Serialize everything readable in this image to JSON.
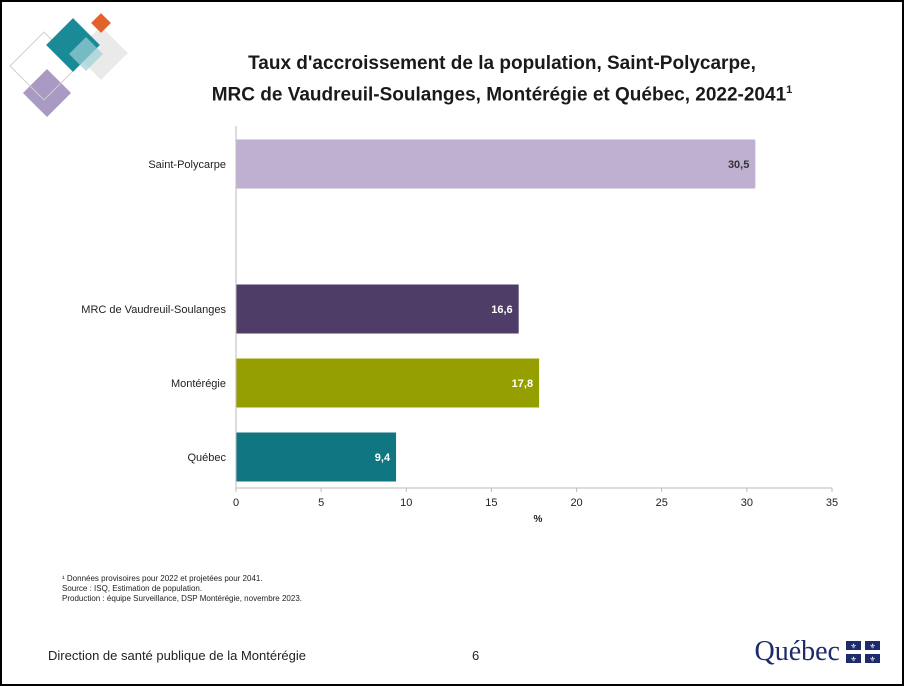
{
  "title": {
    "line1": "Taux d'accroissement de la population, Saint-Polycarpe,",
    "line2": "MRC de Vaudreuil-Soulanges, Montérégie et Québec, 2022-2041",
    "sup": "1"
  },
  "chart_data": {
    "type": "bar",
    "orientation": "horizontal",
    "categories": [
      "Saint-Polycarpe",
      "MRC de Vaudreuil-Soulanges",
      "Montérégie",
      "Québec"
    ],
    "values": [
      30.5,
      16.6,
      17.8,
      9.4
    ],
    "value_labels": [
      "30,5",
      "16,6",
      "17,8",
      "9,4"
    ],
    "colors": [
      "#bfb0d1",
      "#4e3d66",
      "#95a000",
      "#0f7682"
    ],
    "label_colors": [
      "#333333",
      "#ffffff",
      "#ffffff",
      "#ffffff"
    ],
    "xlabel": "%",
    "xlim": [
      0,
      35
    ],
    "xticks": [
      "0",
      "5",
      "10",
      "15",
      "20",
      "25",
      "30",
      "35"
    ],
    "grid": false,
    "legend": "none"
  },
  "footnotes": {
    "line1": "¹ Données provisoires pour 2022 et projetées pour 2041.",
    "line2": "Source : ISQ, Estimation de population.",
    "line3": "Production : équipe Surveillance, DSP Montérégie, novembre 2023."
  },
  "footer": {
    "organization": "Direction de santé publique de la Montérégie",
    "page_number": "6",
    "logo_text": "Québec"
  },
  "icons": {
    "decor": "diamond-shapes-decor",
    "flag": "quebec-flag-icon"
  }
}
